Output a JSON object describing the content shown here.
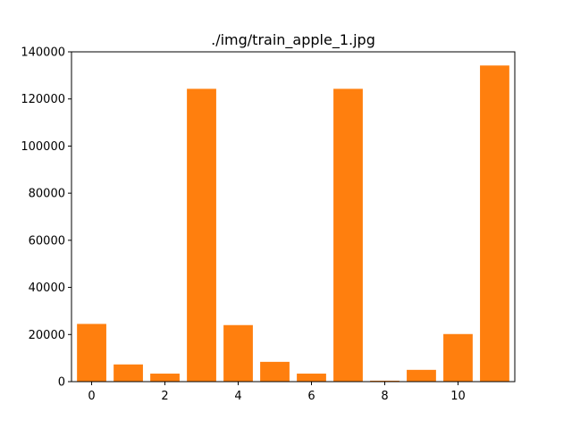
{
  "chart_data": {
    "type": "bar",
    "title": "./img/train_apple_1.jpg",
    "xlabel": "",
    "ylabel": "",
    "categories": [
      0,
      1,
      2,
      3,
      4,
      5,
      6,
      7,
      8,
      9,
      10,
      11
    ],
    "values": [
      24500,
      7300,
      3400,
      124300,
      24000,
      8400,
      3400,
      124300,
      400,
      5000,
      20200,
      134200
    ],
    "xlim": [
      -0.55,
      11.55
    ],
    "ylim": [
      0,
      140000
    ],
    "xticks": [
      0,
      2,
      4,
      6,
      8,
      10
    ],
    "yticks": [
      0,
      20000,
      40000,
      60000,
      80000,
      100000,
      120000,
      140000
    ],
    "bar_color": "#ff7f0e",
    "grid": false
  }
}
